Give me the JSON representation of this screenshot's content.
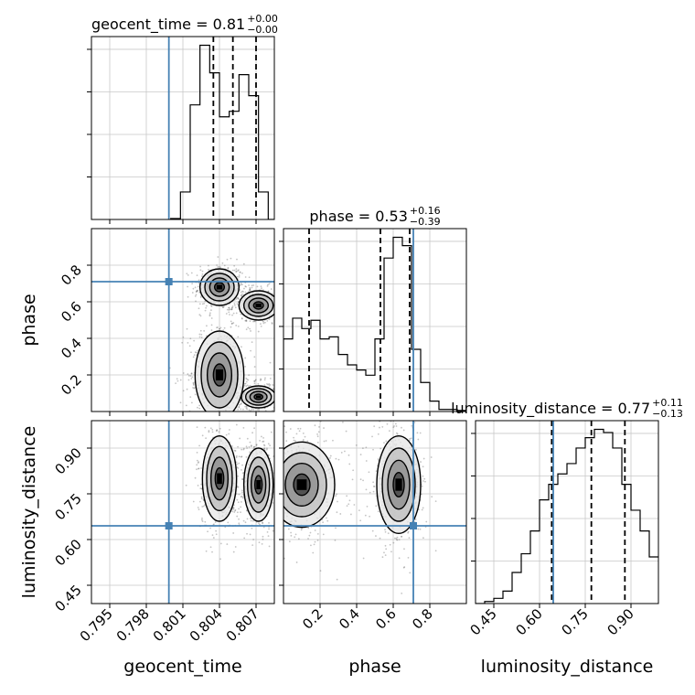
{
  "chart_data": {
    "type": "corner",
    "parameters": [
      "geocent_time",
      "phase",
      "luminosity_distance"
    ],
    "titles": {
      "geocent_time": {
        "label": "geocent_time = 0.81",
        "sup": "+0.00",
        "sub": "−0.00"
      },
      "phase": {
        "label": "phase = 0.53",
        "sup": "+0.16",
        "sub": "−0.39"
      },
      "luminosity_distance": {
        "label": "luminosity_distance = 0.77",
        "sup": "+0.11",
        "sub": "−0.13"
      }
    },
    "axes": {
      "geocent_time": {
        "range": [
          0.7935,
          0.8085
        ],
        "ticks": [
          0.795,
          0.798,
          0.801,
          0.804,
          0.807
        ],
        "tick_labels": [
          "0.795",
          "0.798",
          "0.801",
          "0.804",
          "0.807"
        ]
      },
      "phase": {
        "range": [
          0.0,
          1.0
        ],
        "ticks": [
          0.2,
          0.4,
          0.6,
          0.8
        ],
        "tick_labels": [
          "0.2",
          "0.4",
          "0.6",
          "0.8"
        ]
      },
      "luminosity_distance": {
        "range": [
          0.39,
          0.99
        ],
        "ticks": [
          0.45,
          0.6,
          0.75,
          0.9
        ],
        "tick_labels": [
          "0.45",
          "0.60",
          "0.75",
          "0.90"
        ]
      }
    },
    "truths": {
      "geocent_time": 0.79985,
      "phase": 0.71,
      "luminosity_distance": 0.645
    },
    "quantiles": {
      "geocent_time": [
        0.8035,
        0.8051,
        0.807
      ],
      "phase": [
        0.14,
        0.53,
        0.69
      ],
      "luminosity_distance": [
        0.64,
        0.77,
        0.88
      ]
    },
    "histograms": {
      "geocent_time": {
        "edges": [
          0.8,
          0.8008,
          0.8016,
          0.8024,
          0.8032,
          0.804,
          0.8048,
          0.8056,
          0.8064,
          0.8072,
          0.808,
          0.8088
        ],
        "counts": [
          1,
          30,
          125,
          190,
          160,
          112,
          118,
          158,
          135,
          30,
          0
        ]
      },
      "phase": {
        "edges": [
          0.0,
          0.05,
          0.1,
          0.15,
          0.2,
          0.25,
          0.3,
          0.35,
          0.4,
          0.45,
          0.5,
          0.55,
          0.6,
          0.65,
          0.7,
          0.75,
          0.8,
          0.85,
          0.9,
          0.95,
          1.0
        ],
        "counts": [
          70,
          90,
          80,
          88,
          70,
          72,
          55,
          45,
          40,
          35,
          70,
          148,
          168,
          160,
          60,
          28,
          10,
          2,
          2,
          1
        ]
      },
      "luminosity_distance": {
        "edges": [
          0.39,
          0.42,
          0.45,
          0.48,
          0.51,
          0.54,
          0.57,
          0.6,
          0.63,
          0.66,
          0.69,
          0.72,
          0.75,
          0.78,
          0.81,
          0.84,
          0.87,
          0.9,
          0.93,
          0.96,
          0.99
        ],
        "counts": [
          0,
          2,
          5,
          12,
          30,
          48,
          70,
          100,
          115,
          125,
          135,
          150,
          160,
          168,
          165,
          150,
          115,
          90,
          70,
          45
        ]
      }
    },
    "contour_regions": {
      "phase_vs_geocent_time": [
        {
          "cx": 0.804,
          "cy": 0.68,
          "rx": 0.0008,
          "ry": 0.05
        },
        {
          "cx": 0.8072,
          "cy": 0.58,
          "rx": 0.0008,
          "ry": 0.04
        },
        {
          "cx": 0.804,
          "cy": 0.2,
          "rx": 0.001,
          "ry": 0.12
        },
        {
          "cx": 0.8072,
          "cy": 0.08,
          "rx": 0.0007,
          "ry": 0.03
        }
      ],
      "luminosity_distance_vs_geocent_time": [
        {
          "cx": 0.804,
          "cy": 0.8,
          "rx": 0.0007,
          "ry": 0.07
        },
        {
          "cx": 0.8072,
          "cy": 0.78,
          "rx": 0.0006,
          "ry": 0.06
        }
      ],
      "luminosity_distance_vs_phase": [
        {
          "cx": 0.1,
          "cy": 0.78,
          "rx": 0.09,
          "ry": 0.07
        },
        {
          "cx": 0.63,
          "cy": 0.78,
          "rx": 0.06,
          "ry": 0.08
        }
      ]
    },
    "colors": {
      "truth": "#4682b4",
      "hist": "#000000",
      "grid": "#c8c8c8",
      "points": "#555555"
    }
  }
}
